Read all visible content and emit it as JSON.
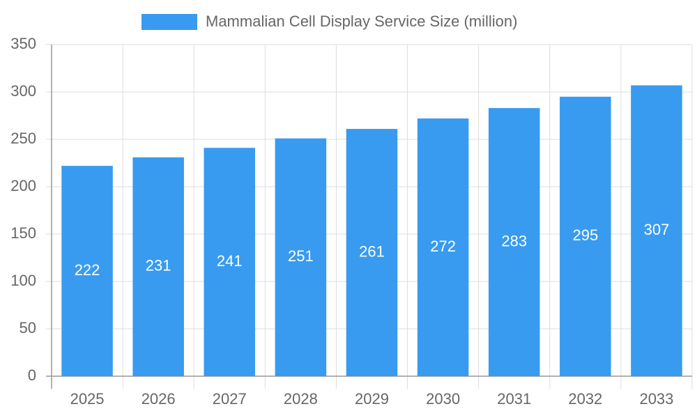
{
  "chart_data": {
    "type": "bar",
    "categories": [
      "2025",
      "2026",
      "2027",
      "2028",
      "2029",
      "2030",
      "2031",
      "2032",
      "2033"
    ],
    "series": [
      {
        "name": "Mammalian Cell Display Service Size (million)",
        "color": "#389bef",
        "values": [
          222,
          231,
          241,
          251,
          261,
          272,
          283,
          295,
          307
        ]
      }
    ],
    "ylim": [
      0,
      350
    ],
    "yticks": [
      0,
      50,
      100,
      150,
      200,
      250,
      300,
      350
    ],
    "grid": true,
    "legend": "top"
  }
}
